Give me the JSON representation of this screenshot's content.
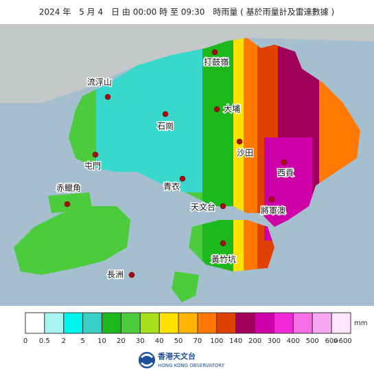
{
  "header": {
    "title": "2024 年　5 月 4　日 由 00:00 時 至 09:30　時雨量 ( 基於雨量計及雷達數據 )"
  },
  "places": [
    "打鼓嶺",
    "流浮山",
    "大埔",
    "石崗",
    "沙田",
    "屯門",
    "西貢",
    "青衣",
    "赤鱲角",
    "天文台",
    "將軍澳",
    "黃竹坑",
    "長洲"
  ],
  "legend": {
    "unit": "mm",
    "colors": [
      "#ffffff",
      "#a8f4f0",
      "#00f4f0",
      "#38d0c4",
      "#1cb81c",
      "#4ccc3c",
      "#a8e020",
      "#ffe000",
      "#ffb400",
      "#ff7800",
      "#e04000",
      "#a0005c",
      "#d000a8",
      "#f028d8",
      "#f470e4",
      "#f8a8f0",
      "#ffe4fc"
    ],
    "labels": [
      "0",
      "0.5",
      "2",
      "5",
      "10",
      "20",
      "30",
      "40",
      "50",
      "70",
      "100",
      "140",
      "200",
      "300",
      "400",
      "500",
      "600",
      ">600"
    ]
  },
  "footer": {
    "name_zh": "香港天文台",
    "name_en": "HONG KONG OBSERVATORY"
  }
}
